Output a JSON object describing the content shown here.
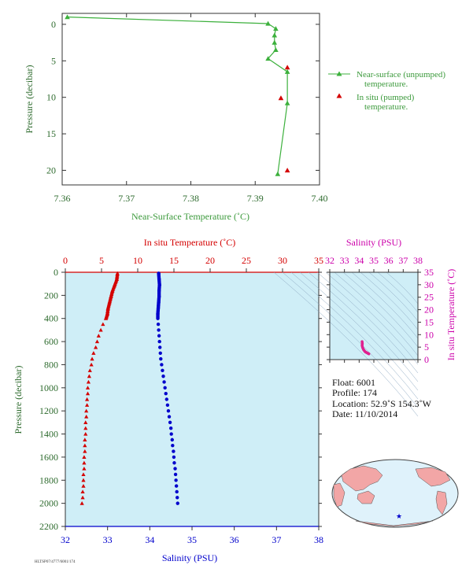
{
  "chart_data": [
    {
      "id": "near_surface",
      "type": "line",
      "xlabel": "Near-Surface Temperature (˚C)",
      "ylabel": "Pressure (decibar)",
      "xlim": [
        7.36,
        7.4
      ],
      "ylim": [
        -1.5,
        22
      ],
      "y_inverted": true,
      "x_ticks": [
        "7.36",
        "7.37",
        "7.38",
        "7.39",
        "7.40"
      ],
      "y_ticks": [
        "0",
        "5",
        "10",
        "15",
        "20"
      ],
      "legend_position": "right",
      "series": [
        {
          "name": "Near-surface (unpumped) temperature.",
          "marker": "triangle",
          "color": "#3cb03c",
          "points": [
            {
              "x": 7.3608,
              "y": -1.0
            },
            {
              "x": 7.392,
              "y": -0.1
            },
            {
              "x": 7.3932,
              "y": 0.6
            },
            {
              "x": 7.393,
              "y": 1.5
            },
            {
              "x": 7.393,
              "y": 2.5
            },
            {
              "x": 7.3932,
              "y": 3.5
            },
            {
              "x": 7.392,
              "y": 4.7
            },
            {
              "x": 7.395,
              "y": 6.5
            },
            {
              "x": 7.395,
              "y": 10.8
            },
            {
              "x": 7.3935,
              "y": 20.5
            }
          ]
        },
        {
          "name": "In situ (pumped) temperature.",
          "marker": "triangle",
          "color": "#d40000",
          "points": [
            {
              "x": 7.395,
              "y": 5.9
            },
            {
              "x": 7.394,
              "y": 10.1
            },
            {
              "x": 7.395,
              "y": 20.0
            }
          ]
        }
      ]
    },
    {
      "id": "profile",
      "type": "scatter",
      "ylabel": "Pressure (decibar)",
      "ylim": [
        0,
        2200
      ],
      "y_inverted": true,
      "y_ticks": [
        "0",
        "200",
        "400",
        "600",
        "800",
        "1000",
        "1200",
        "1400",
        "1600",
        "1800",
        "2000",
        "2200"
      ],
      "top_axis": {
        "label": "In situ Temperature (˚C)",
        "range": [
          0,
          35
        ],
        "ticks": [
          "0",
          "5",
          "10",
          "15",
          "20",
          "25",
          "30",
          "35"
        ]
      },
      "bottom_axis": {
        "label": "Salinity (PSU)",
        "range": [
          32,
          38
        ],
        "ticks": [
          "32",
          "33",
          "34",
          "35",
          "36",
          "37",
          "38"
        ]
      },
      "temperature": {
        "color": "#d40000",
        "marker": "triangle",
        "pressure": [
          10,
          60,
          110,
          160,
          210,
          260,
          310,
          360,
          400,
          450,
          500,
          550,
          600,
          650,
          700,
          750,
          800,
          850,
          900,
          950,
          1000,
          1050,
          1100,
          1150,
          1200,
          1250,
          1300,
          1350,
          1400,
          1450,
          1500,
          1550,
          1600,
          1650,
          1700,
          1750,
          1800,
          1850,
          1900,
          1950,
          2000
        ],
        "values": [
          7.2,
          7.1,
          6.8,
          6.5,
          6.3,
          6.1,
          5.9,
          5.8,
          5.6,
          5.2,
          4.9,
          4.6,
          4.4,
          4.2,
          3.9,
          3.7,
          3.6,
          3.4,
          3.3,
          3.2,
          3.1,
          3.1,
          3.0,
          3.0,
          2.9,
          2.9,
          2.8,
          2.8,
          2.8,
          2.7,
          2.7,
          2.7,
          2.6,
          2.6,
          2.6,
          2.5,
          2.5,
          2.5,
          2.4,
          2.4,
          2.3
        ]
      },
      "salinity": {
        "color": "#0000cc",
        "marker": "circle",
        "pressure": [
          10,
          60,
          110,
          160,
          210,
          260,
          310,
          360,
          400,
          450,
          500,
          550,
          600,
          650,
          700,
          750,
          800,
          850,
          900,
          950,
          1000,
          1050,
          1100,
          1150,
          1200,
          1250,
          1300,
          1350,
          1400,
          1450,
          1500,
          1550,
          1600,
          1650,
          1700,
          1750,
          1800,
          1850,
          1900,
          1950,
          2000
        ],
        "values": [
          34.21,
          34.22,
          34.23,
          34.22,
          34.22,
          34.21,
          34.2,
          34.19,
          34.19,
          34.2,
          34.21,
          34.22,
          34.23,
          34.24,
          34.25,
          34.26,
          34.28,
          34.3,
          34.32,
          34.34,
          34.36,
          34.38,
          34.4,
          34.42,
          34.44,
          34.46,
          34.48,
          34.5,
          34.51,
          34.53,
          34.54,
          34.56,
          34.57,
          34.58,
          34.6,
          34.61,
          34.62,
          34.63,
          34.64,
          34.65,
          34.66
        ]
      }
    },
    {
      "id": "ts_diagram",
      "type": "scatter",
      "top_axis": {
        "label": "Salinity (PSU)",
        "range": [
          32,
          38
        ],
        "ticks": [
          "32",
          "33",
          "34",
          "35",
          "36",
          "37",
          "38"
        ]
      },
      "right_axis": {
        "label": "In situ Temperature (˚C)",
        "range": [
          0,
          35
        ],
        "ticks": [
          "0",
          "5",
          "10",
          "15",
          "20",
          "25",
          "30",
          "35"
        ]
      },
      "color": "#e0208f",
      "points": [
        {
          "x": 34.2,
          "y": 7.2
        },
        {
          "x": 34.21,
          "y": 6.8
        },
        {
          "x": 34.22,
          "y": 6.3
        },
        {
          "x": 34.2,
          "y": 5.8
        },
        {
          "x": 34.22,
          "y": 5.2
        },
        {
          "x": 34.25,
          "y": 4.6
        },
        {
          "x": 34.3,
          "y": 4.0
        },
        {
          "x": 34.36,
          "y": 3.5
        },
        {
          "x": 34.42,
          "y": 3.1
        },
        {
          "x": 34.48,
          "y": 2.9
        },
        {
          "x": 34.54,
          "y": 2.7
        },
        {
          "x": 34.6,
          "y": 2.5
        },
        {
          "x": 34.66,
          "y": 2.3
        }
      ]
    }
  ],
  "info": {
    "float": "Float:  6001",
    "profile": "Profile:  174",
    "location": "Location:  52.9˚S  154.3˚W",
    "date": "Date:  11/10/2014"
  },
  "footnote": "HLTSP07/4777/6001/174",
  "colors": {
    "plot_bg": "#cfeef7",
    "green": "#3cb03c",
    "red": "#d40000",
    "blue": "#0000cc",
    "magenta": "#cc00aa"
  }
}
